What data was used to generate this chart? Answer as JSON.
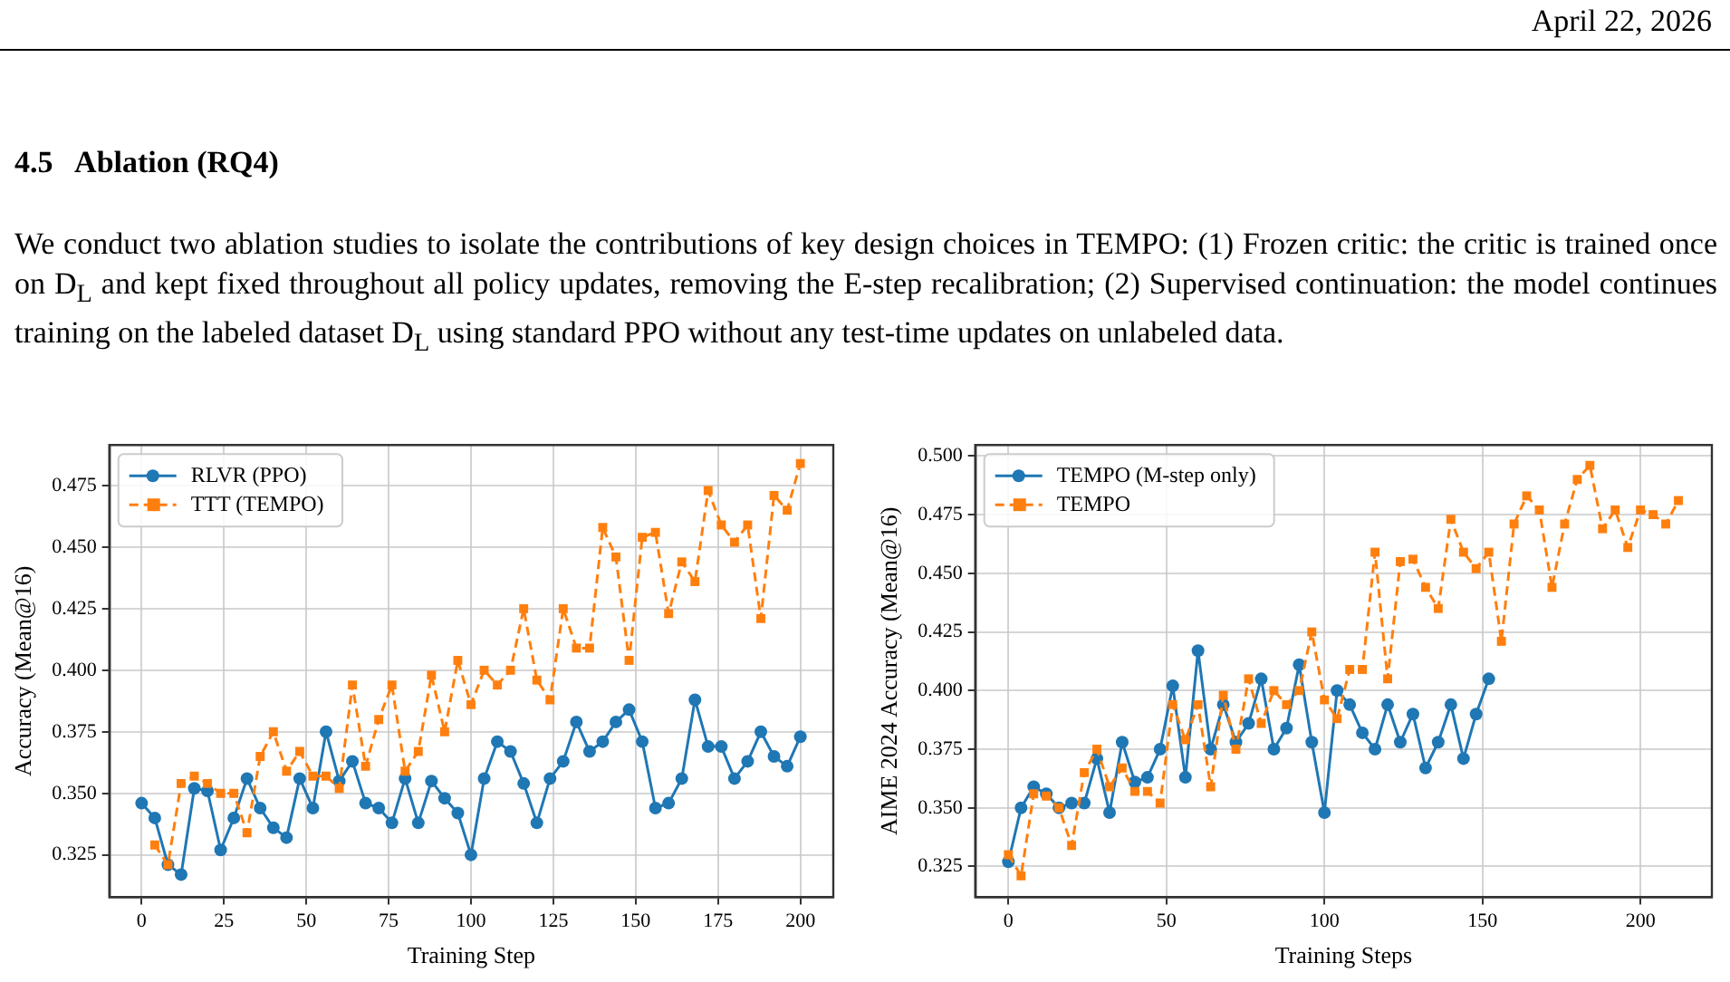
{
  "chart_data": [
    {
      "type": "line",
      "xlabel": "Training Step",
      "ylabel": "Accuracy (Mean@16)",
      "annotations": [
        "April 22, 2026",
        "4.5   Ablation (RQ4)",
        "We conduct two ablation studies to isolate the contributions of key design choices in TEMPO: (1) Frozen critic: the critic is trained once on D$_{L}$ and kept fixed throughout all policy updates, removing the E-step recalibration; (2) Supervised continuation: the model continues training on the labeled dataset D$_{L}$ using standard PPO without any test-time updates on unlabeled data."
      ],
      "xlim": [
        -9.8,
        210
      ],
      "ylim": [
        0.3078,
        0.4915
      ],
      "xticks": [
        0,
        25,
        50,
        75,
        100,
        125,
        150,
        175,
        200
      ],
      "yticks": [
        {
          "value": 0.325,
          "label": "0.325"
        },
        {
          "value": 0.35,
          "label": "0.350"
        },
        {
          "value": 0.375,
          "label": "0.375"
        },
        {
          "value": 0.4,
          "label": "0.400"
        },
        {
          "value": 0.425,
          "label": "0.425"
        },
        {
          "value": 0.45,
          "label": "0.450"
        },
        {
          "value": 0.475,
          "label": "0.475"
        }
      ],
      "grid": true,
      "legend": "top left",
      "series": [
        {
          "name": "RLVR (PPO)",
          "color": "#1f77b4",
          "marker": "circle",
          "line_style": "solid",
          "x": [
            0,
            4,
            8,
            12,
            16,
            20,
            24,
            28,
            32,
            36,
            40,
            44,
            48,
            52,
            56,
            60,
            64,
            68,
            72,
            76,
            80,
            84,
            88,
            92,
            96,
            100,
            104,
            108,
            112,
            116,
            120,
            124,
            128,
            132,
            136,
            140,
            144,
            148,
            152,
            156,
            160,
            164,
            168,
            172,
            176,
            180,
            184,
            188,
            192,
            196,
            200
          ],
          "values": [
            0.346,
            0.34,
            0.321,
            0.317,
            0.352,
            0.351,
            0.327,
            0.34,
            0.356,
            0.344,
            0.336,
            0.332,
            0.356,
            0.344,
            0.375,
            0.355,
            0.363,
            0.346,
            0.344,
            0.338,
            0.356,
            0.338,
            0.355,
            0.348,
            0.342,
            0.325,
            0.356,
            0.371,
            0.367,
            0.354,
            0.338,
            0.356,
            0.363,
            0.379,
            0.367,
            0.371,
            0.379,
            0.384,
            0.371,
            0.344,
            0.346,
            0.356,
            0.388,
            0.369,
            0.369,
            0.356,
            0.363,
            0.375,
            0.365,
            0.361,
            0.373
          ]
        },
        {
          "name": "TTT (TEMPO)",
          "color": "#ff7f0e",
          "marker": "square",
          "line_style": "dashed",
          "x": [
            4,
            8,
            12,
            16,
            20,
            24,
            28,
            32,
            36,
            40,
            44,
            48,
            52,
            56,
            60,
            64,
            68,
            72,
            76,
            80,
            84,
            88,
            92,
            96,
            100,
            104,
            108,
            112,
            116,
            120,
            124,
            128,
            132,
            136,
            140,
            144,
            148,
            152,
            156,
            160,
            164,
            168,
            172,
            176,
            180,
            184,
            188,
            192,
            196,
            200
          ],
          "values": [
            0.329,
            0.321,
            0.354,
            0.357,
            0.354,
            0.35,
            0.35,
            0.334,
            0.365,
            0.375,
            0.359,
            0.367,
            0.357,
            0.357,
            0.352,
            0.394,
            0.361,
            0.38,
            0.394,
            0.359,
            0.367,
            0.398,
            0.375,
            0.404,
            0.386,
            0.4,
            0.394,
            0.4,
            0.425,
            0.396,
            0.388,
            0.425,
            0.409,
            0.409,
            0.458,
            0.446,
            0.404,
            0.454,
            0.456,
            0.423,
            0.444,
            0.436,
            0.473,
            0.459,
            0.452,
            0.459,
            0.421,
            0.471,
            0.465,
            0.484
          ]
        }
      ]
    },
    {
      "type": "line",
      "xlabel": "Training Steps",
      "ylabel": "AIME 2024 Accuracy (Mean@16)",
      "xlim": [
        -10.5,
        222.6
      ],
      "ylim": [
        0.3119,
        0.5047
      ],
      "xticks": [
        0,
        50,
        100,
        150,
        200
      ],
      "yticks": [
        {
          "value": 0.325,
          "label": "0.325"
        },
        {
          "value": 0.35,
          "label": "0.350"
        },
        {
          "value": 0.375,
          "label": "0.375"
        },
        {
          "value": 0.4,
          "label": "0.400"
        },
        {
          "value": 0.425,
          "label": "0.425"
        },
        {
          "value": 0.45,
          "label": "0.450"
        },
        {
          "value": 0.475,
          "label": "0.475"
        },
        {
          "value": 0.5,
          "label": "0.500"
        }
      ],
      "grid": true,
      "legend": "top left",
      "series": [
        {
          "name": "TEMPO (M-step only)",
          "color": "#1f77b4",
          "marker": "circle",
          "line_style": "solid",
          "x": [
            0,
            4,
            8,
            12,
            16,
            20,
            24,
            28,
            32,
            36,
            40,
            44,
            48,
            52,
            56,
            60,
            64,
            68,
            72,
            76,
            80,
            84,
            88,
            92,
            96,
            100,
            104,
            108,
            112,
            116,
            120,
            124,
            128,
            132,
            136,
            140,
            144,
            148,
            152
          ],
          "values": [
            0.327,
            0.35,
            0.359,
            0.356,
            0.35,
            0.352,
            0.352,
            0.371,
            0.348,
            0.378,
            0.361,
            0.363,
            0.375,
            0.402,
            0.363,
            0.417,
            0.375,
            0.394,
            0.378,
            0.386,
            0.405,
            0.375,
            0.384,
            0.411,
            0.378,
            0.348,
            0.4,
            0.394,
            0.382,
            0.375,
            0.394,
            0.378,
            0.39,
            0.367,
            0.378,
            0.394,
            0.371,
            0.39,
            0.405
          ]
        },
        {
          "name": "TEMPO",
          "color": "#ff7f0e",
          "marker": "square",
          "line_style": "dashed",
          "x": [
            0,
            4,
            8,
            12,
            16,
            20,
            24,
            28,
            32,
            36,
            40,
            44,
            48,
            52,
            56,
            60,
            64,
            68,
            72,
            76,
            80,
            84,
            88,
            92,
            96,
            100,
            104,
            108,
            112,
            116,
            120,
            124,
            128,
            132,
            136,
            140,
            144,
            148,
            152,
            156,
            160,
            164,
            168,
            172,
            176,
            180,
            184,
            188,
            192,
            196,
            200,
            204,
            208,
            212
          ],
          "values": [
            0.33,
            0.321,
            0.356,
            0.355,
            0.35,
            0.334,
            0.365,
            0.375,
            0.359,
            0.367,
            0.357,
            0.357,
            0.352,
            0.394,
            0.379,
            0.394,
            0.359,
            0.398,
            0.375,
            0.405,
            0.386,
            0.4,
            0.394,
            0.4,
            0.425,
            0.396,
            0.388,
            0.409,
            0.409,
            0.459,
            0.405,
            0.455,
            0.456,
            0.444,
            0.435,
            0.473,
            0.459,
            0.452,
            0.459,
            0.421,
            0.471,
            0.483,
            0.477,
            0.444,
            0.471,
            0.49,
            0.496,
            0.469,
            0.477,
            0.461,
            0.477,
            0.475,
            0.471,
            0.481
          ]
        }
      ]
    }
  ]
}
